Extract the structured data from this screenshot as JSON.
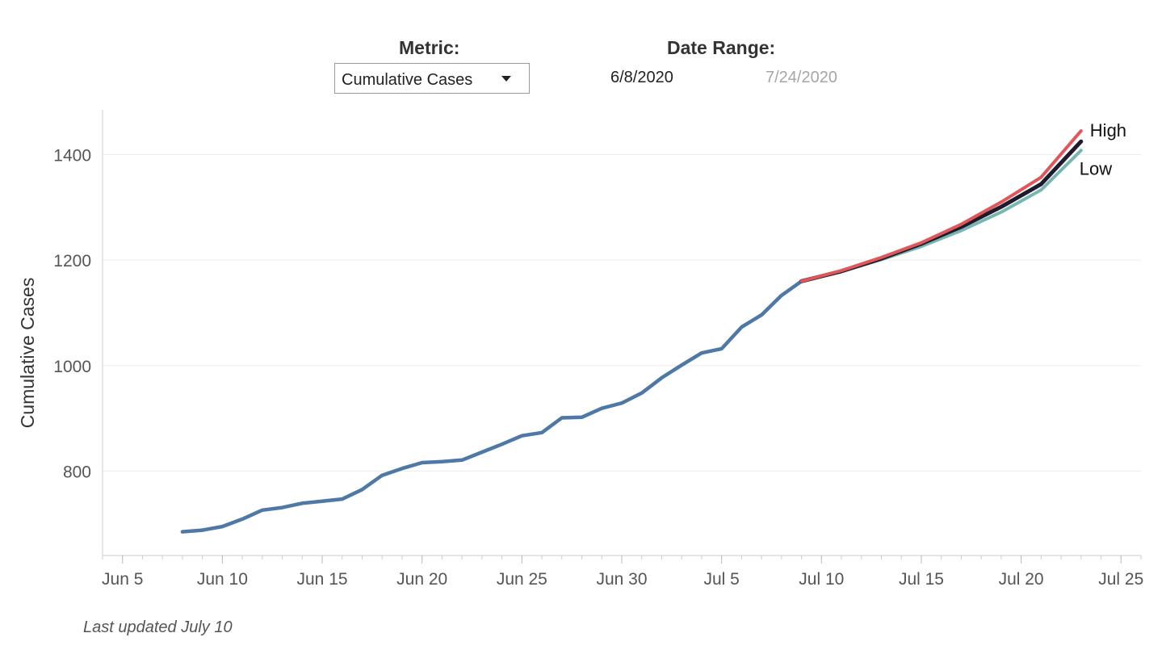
{
  "controls": {
    "metric_label": "Metric:",
    "metric_selected": "Cumulative Cases",
    "date_range_label": "Date Range:",
    "date_start": "6/8/2020",
    "date_end": "7/24/2020"
  },
  "footnote": "Last updated July 10",
  "colors": {
    "actual": "#4e79a7",
    "high": "#e15759",
    "mid": "#1e1b2e",
    "low": "#76b7b2",
    "grid": "#ececec",
    "axis": "#cccccc",
    "tick_text": "#555555"
  },
  "chart_data": {
    "type": "line",
    "title": "",
    "xlabel": "",
    "ylabel": "Cumulative Cases",
    "x_axis": {
      "min": "2020-06-04",
      "max": "2020-07-26",
      "ticks": [
        {
          "date": "2020-06-05",
          "label": "Jun 5"
        },
        {
          "date": "2020-06-10",
          "label": "Jun 10"
        },
        {
          "date": "2020-06-15",
          "label": "Jun 15"
        },
        {
          "date": "2020-06-20",
          "label": "Jun 20"
        },
        {
          "date": "2020-06-25",
          "label": "Jun 25"
        },
        {
          "date": "2020-06-30",
          "label": "Jun 30"
        },
        {
          "date": "2020-07-05",
          "label": "Jul 5"
        },
        {
          "date": "2020-07-10",
          "label": "Jul 10"
        },
        {
          "date": "2020-07-15",
          "label": "Jul 15"
        },
        {
          "date": "2020-07-20",
          "label": "Jul 20"
        },
        {
          "date": "2020-07-25",
          "label": "Jul 25"
        }
      ]
    },
    "y_axis": {
      "min": 640,
      "max": 1485,
      "ticks": [
        {
          "value": 800,
          "label": "800"
        },
        {
          "value": 1000,
          "label": "1000"
        },
        {
          "value": 1200,
          "label": "1200"
        },
        {
          "value": 1400,
          "label": "1400"
        }
      ]
    },
    "grid": true,
    "series": [
      {
        "key": "actual",
        "color": "#4e79a7",
        "points": [
          [
            "2020-06-08",
            685
          ],
          [
            "2020-06-09",
            688
          ],
          [
            "2020-06-10",
            695
          ],
          [
            "2020-06-11",
            709
          ],
          [
            "2020-06-12",
            726
          ],
          [
            "2020-06-13",
            731
          ],
          [
            "2020-06-14",
            739
          ],
          [
            "2020-06-15",
            743
          ],
          [
            "2020-06-16",
            747
          ],
          [
            "2020-06-17",
            765
          ],
          [
            "2020-06-18",
            792
          ],
          [
            "2020-06-19",
            805
          ],
          [
            "2020-06-20",
            816
          ],
          [
            "2020-06-21",
            818
          ],
          [
            "2020-06-22",
            821
          ],
          [
            "2020-06-23",
            836
          ],
          [
            "2020-06-24",
            851
          ],
          [
            "2020-06-25",
            867
          ],
          [
            "2020-06-26",
            873
          ],
          [
            "2020-06-27",
            901
          ],
          [
            "2020-06-28",
            902
          ],
          [
            "2020-06-29",
            919
          ],
          [
            "2020-06-30",
            929
          ],
          [
            "2020-07-01",
            948
          ],
          [
            "2020-07-02",
            977
          ],
          [
            "2020-07-03",
            1001
          ],
          [
            "2020-07-04",
            1024
          ],
          [
            "2020-07-05",
            1032
          ],
          [
            "2020-07-06",
            1073
          ],
          [
            "2020-07-07",
            1096
          ],
          [
            "2020-07-08",
            1133
          ],
          [
            "2020-07-09",
            1160
          ]
        ]
      },
      {
        "key": "low",
        "name": "Low",
        "color": "#76b7b2",
        "points": [
          [
            "2020-07-09",
            1160
          ],
          [
            "2020-07-11",
            1178
          ],
          [
            "2020-07-13",
            1201
          ],
          [
            "2020-07-15",
            1226
          ],
          [
            "2020-07-17",
            1256
          ],
          [
            "2020-07-19",
            1291
          ],
          [
            "2020-07-21",
            1333
          ],
          [
            "2020-07-23",
            1408
          ]
        ]
      },
      {
        "key": "mid",
        "color": "#1e1b2e",
        "points": [
          [
            "2020-07-09",
            1160
          ],
          [
            "2020-07-11",
            1179
          ],
          [
            "2020-07-13",
            1203
          ],
          [
            "2020-07-15",
            1231
          ],
          [
            "2020-07-17",
            1263
          ],
          [
            "2020-07-19",
            1301
          ],
          [
            "2020-07-21",
            1344
          ],
          [
            "2020-07-23",
            1425
          ]
        ]
      },
      {
        "key": "high",
        "name": "High",
        "color": "#e15759",
        "points": [
          [
            "2020-07-09",
            1160
          ],
          [
            "2020-07-11",
            1180
          ],
          [
            "2020-07-13",
            1205
          ],
          [
            "2020-07-15",
            1233
          ],
          [
            "2020-07-17",
            1268
          ],
          [
            "2020-07-19",
            1310
          ],
          [
            "2020-07-21",
            1357
          ],
          [
            "2020-07-23",
            1445
          ]
        ]
      }
    ]
  }
}
